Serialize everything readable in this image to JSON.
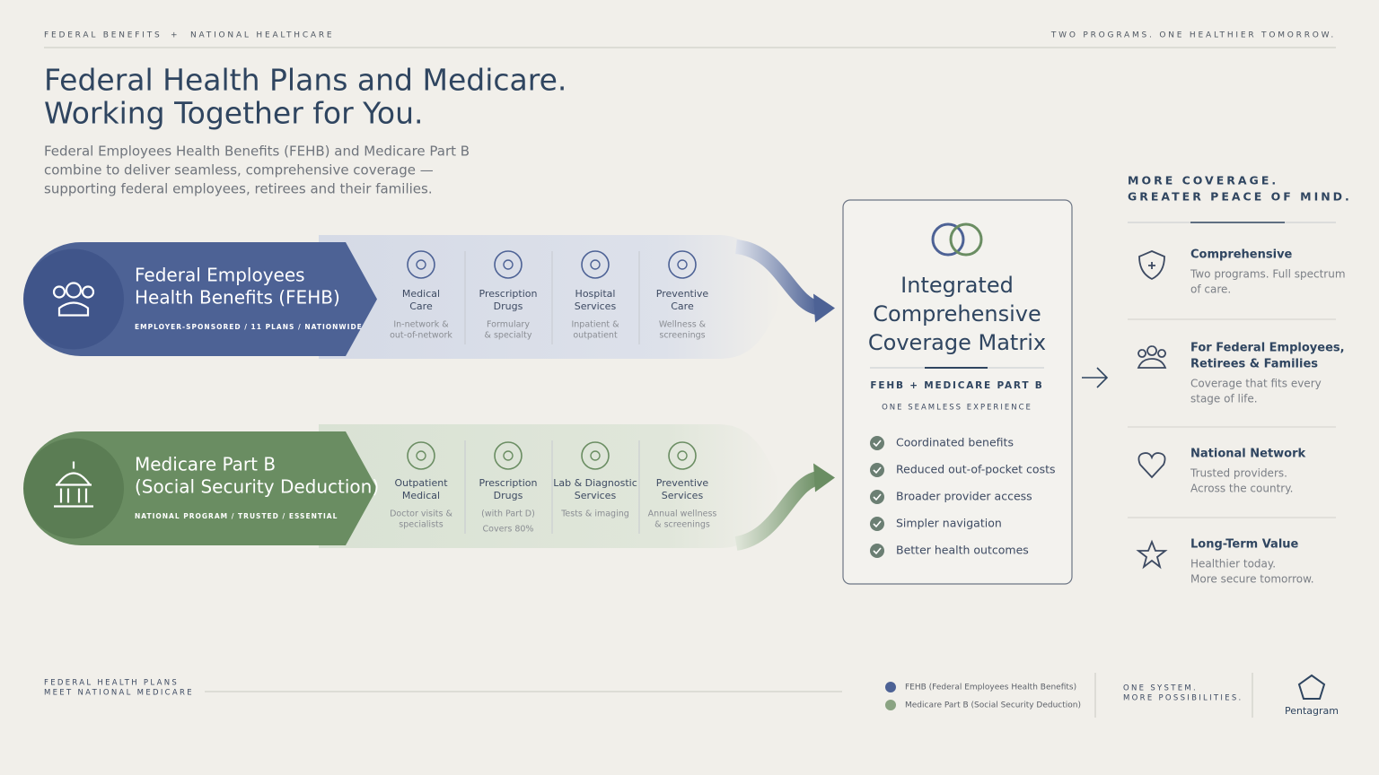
{
  "header": {
    "left": "FEDERAL BENEFITS",
    "joiner": "+",
    "left2": "NATIONAL HEALTHCARE",
    "right": "TWO PROGRAMS. ONE HEALTHIER TOMORROW."
  },
  "title": [
    "Federal Health Plans and Medicare.",
    "Working Together for You."
  ],
  "subtitle": [
    "Federal Employees Health Benefits (FEHB) and Medicare Part B",
    "combine to deliver seamless, comprehensive coverage —",
    "supporting federal employees, retirees and their families."
  ],
  "programs": [
    {
      "name": [
        "Federal Employees",
        "Health Benefits (FEHB)"
      ],
      "tags": "EMPLOYER-SPONSORED  /  11 PLANS  /  NATIONWIDE",
      "services": [
        {
          "name": [
            "Medical",
            "Care"
          ],
          "desc": [
            "In-network &",
            "out-of-network"
          ]
        },
        {
          "name": [
            "Prescription",
            "Drugs"
          ],
          "desc": [
            "Formulary",
            "& specialty"
          ]
        },
        {
          "name": [
            "Hospital",
            "Services"
          ],
          "desc": [
            "Inpatient &",
            "outpatient"
          ]
        },
        {
          "name": [
            "Preventive",
            "Care"
          ],
          "desc": [
            "Wellness &",
            "screenings"
          ]
        }
      ]
    },
    {
      "name": [
        "Medicare Part B",
        "(Social Security Deduction)"
      ],
      "tags": "NATIONAL PROGRAM  /  TRUSTED  /  ESSENTIAL",
      "services": [
        {
          "name": [
            "Outpatient",
            "Medical"
          ],
          "desc": [
            "Doctor visits &",
            "specialists"
          ]
        },
        {
          "name": [
            "Prescription",
            "Drugs"
          ],
          "desc": [
            "(with Part D)",
            "Covers 80%"
          ]
        },
        {
          "name": [
            "Lab & Diagnostic",
            "Services"
          ],
          "desc": [
            "Tests & imaging"
          ]
        },
        {
          "name": [
            "Preventive",
            "Services"
          ],
          "desc": [
            "Annual wellness",
            "& screenings"
          ]
        }
      ]
    }
  ],
  "matrix": {
    "title": [
      "Integrated",
      "Comprehensive",
      "Coverage Matrix"
    ],
    "subtitle": "FEHB  +  MEDICARE PART B",
    "tagline": "ONE SEAMLESS EXPERIENCE",
    "checklist": [
      "Coordinated benefits",
      "Reduced out-of-pocket costs",
      "Broader provider access",
      "Simpler navigation",
      "Better health outcomes"
    ]
  },
  "benefits": {
    "heading": [
      "MORE COVERAGE.",
      "GREATER PEACE OF MIND."
    ],
    "items": [
      {
        "title": [
          "Comprehensive"
        ],
        "desc": [
          "Two programs. Full spectrum",
          "of care."
        ]
      },
      {
        "title": [
          "For Federal Employees,",
          "Retirees & Families"
        ],
        "desc": [
          "Coverage that fits every",
          "stage of life."
        ]
      },
      {
        "title": [
          "National Network"
        ],
        "desc": [
          "Trusted providers.",
          "Across the country."
        ]
      },
      {
        "title": [
          "Long-Term Value"
        ],
        "desc": [
          "Healthier today.",
          "More secure tomorrow."
        ]
      }
    ]
  },
  "footer": {
    "tagline": [
      "FEDERAL HEALTH PLANS",
      "MEET NATIONAL MEDICARE"
    ],
    "legend": [
      "FEHB (Federal Employees Health Benefits)",
      "Medicare Part B (Social Security Deduction)"
    ],
    "motto": [
      "ONE SYSTEM.",
      "MORE POSSIBILITIES."
    ],
    "brand": "Pentagram"
  }
}
